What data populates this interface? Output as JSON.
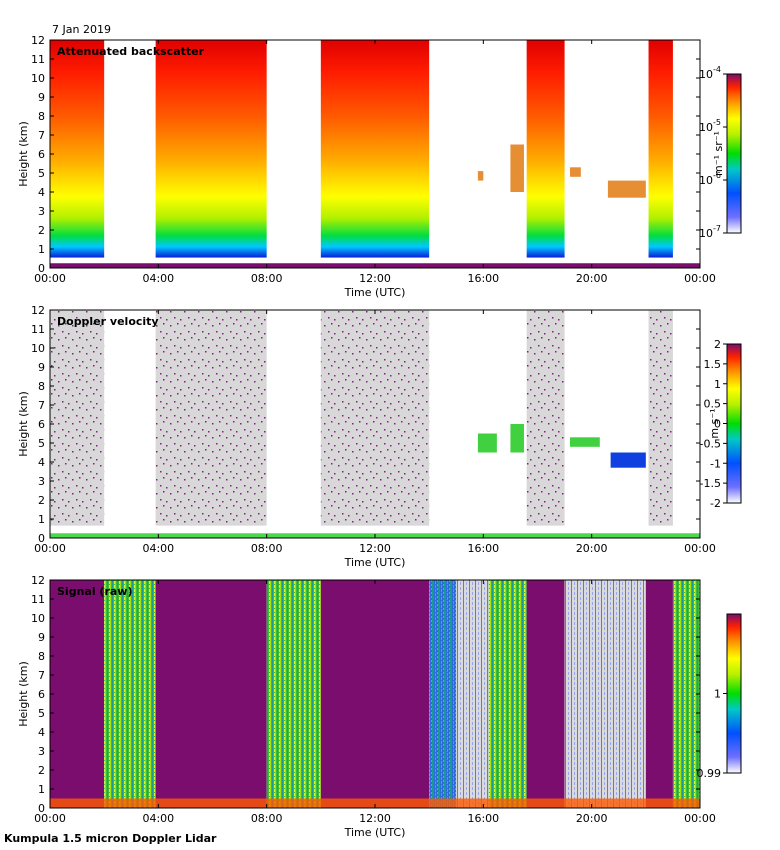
{
  "date": "7 Jan 2019",
  "footer": "Kumpula 1.5 micron Doppler Lidar",
  "x_ticks": [
    "00:00",
    "04:00",
    "08:00",
    "12:00",
    "16:00",
    "20:00",
    "00:00"
  ],
  "chart_data": [
    {
      "type": "heatmap",
      "title": "Attenuated backscatter",
      "xlabel": "Time (UTC)",
      "ylabel": "Height (km)",
      "xlim_hours": [
        0,
        24
      ],
      "ylim": [
        0,
        12
      ],
      "y_ticks": [
        0,
        1,
        2,
        3,
        4,
        5,
        6,
        7,
        8,
        9,
        10,
        11,
        12
      ],
      "colorbar": {
        "unit": "m-1 sr-1",
        "unit_label": "m⁻¹ sr⁻¹",
        "scale": "log",
        "ticks": [
          {
            "base": "10",
            "exp": "-4",
            "value": 0.0001
          },
          {
            "base": "10",
            "exp": "-5",
            "value": 1e-05
          },
          {
            "base": "10",
            "exp": "-6",
            "value": 1e-06
          },
          {
            "base": "10",
            "exp": "-7",
            "value": 1e-07
          }
        ]
      },
      "data_blocks_hours": [
        {
          "start": 0.0,
          "end": 2.0,
          "top_km": 12
        },
        {
          "start": 3.9,
          "end": 8.0,
          "top_km": 12
        },
        {
          "start": 10.0,
          "end": 14.0,
          "top_km": 12
        },
        {
          "start": 17.6,
          "end": 19.0,
          "top_km": 12
        },
        {
          "start": 22.1,
          "end": 23.0,
          "top_km": 12
        }
      ],
      "cloud_layers": [
        {
          "start": 15.8,
          "end": 16.0,
          "bottom_km": 4.6,
          "top_km": 5.1
        },
        {
          "start": 17.0,
          "end": 17.5,
          "bottom_km": 4.0,
          "top_km": 6.5
        },
        {
          "start": 19.2,
          "end": 19.6,
          "bottom_km": 4.8,
          "top_km": 5.3
        },
        {
          "start": 20.6,
          "end": 22.0,
          "bottom_km": 3.7,
          "top_km": 4.6
        }
      ]
    },
    {
      "type": "heatmap",
      "title": "Doppler velocity",
      "xlabel": "Time (UTC)",
      "ylabel": "Height (km)",
      "xlim_hours": [
        0,
        24
      ],
      "ylim": [
        0,
        12
      ],
      "y_ticks": [
        0,
        1,
        2,
        3,
        4,
        5,
        6,
        7,
        8,
        9,
        10,
        11,
        12
      ],
      "colorbar": {
        "unit_label": "m s⁻¹",
        "scale": "linear",
        "range": [
          -2,
          2
        ],
        "ticks": [
          "2",
          "1.5",
          "1",
          "0.5",
          "0",
          "-0.5",
          "-1",
          "-1.5",
          "-2"
        ]
      },
      "noise_blocks_hours": [
        {
          "start": 0.0,
          "end": 2.0
        },
        {
          "start": 3.9,
          "end": 8.0
        },
        {
          "start": 10.0,
          "end": 14.0
        },
        {
          "start": 17.6,
          "end": 19.0
        },
        {
          "start": 22.1,
          "end": 23.0
        }
      ],
      "cloud_velocities": [
        {
          "start": 15.8,
          "end": 16.5,
          "bottom_km": 4.5,
          "top_km": 5.5,
          "value": 0.1
        },
        {
          "start": 17.0,
          "end": 17.5,
          "bottom_km": 4.5,
          "top_km": 6.0,
          "value": 0.0
        },
        {
          "start": 19.2,
          "end": 20.3,
          "bottom_km": 4.8,
          "top_km": 5.3,
          "value": 0.4
        },
        {
          "start": 20.7,
          "end": 22.0,
          "bottom_km": 3.7,
          "top_km": 4.5,
          "value": -1.0
        }
      ]
    },
    {
      "type": "heatmap",
      "title": "Signal (raw)",
      "xlabel": "Time (UTC)",
      "ylabel": "Height (km)",
      "xlim_hours": [
        0,
        24
      ],
      "ylim": [
        0,
        12
      ],
      "y_ticks": [
        0,
        1,
        2,
        3,
        4,
        5,
        6,
        7,
        8,
        9,
        10,
        11,
        12
      ],
      "colorbar": {
        "scale": "linear",
        "range": [
          0.99,
          1.01
        ],
        "ticks": [
          "1",
          "0.99"
        ]
      },
      "column_categories": [
        {
          "start": 0.0,
          "end": 2.0,
          "level": "high"
        },
        {
          "start": 2.0,
          "end": 3.9,
          "level": "mixed"
        },
        {
          "start": 3.9,
          "end": 8.0,
          "level": "high"
        },
        {
          "start": 8.0,
          "end": 10.0,
          "level": "mixed"
        },
        {
          "start": 10.0,
          "end": 14.0,
          "level": "high"
        },
        {
          "start": 14.0,
          "end": 15.0,
          "level": "low"
        },
        {
          "start": 15.0,
          "end": 16.2,
          "level": "low_gray"
        },
        {
          "start": 16.2,
          "end": 17.6,
          "level": "mixed"
        },
        {
          "start": 17.6,
          "end": 19.0,
          "level": "high"
        },
        {
          "start": 19.0,
          "end": 22.0,
          "level": "low_gray"
        },
        {
          "start": 22.0,
          "end": 23.0,
          "level": "high"
        },
        {
          "start": 23.0,
          "end": 24.0,
          "level": "mixed"
        }
      ]
    }
  ]
}
